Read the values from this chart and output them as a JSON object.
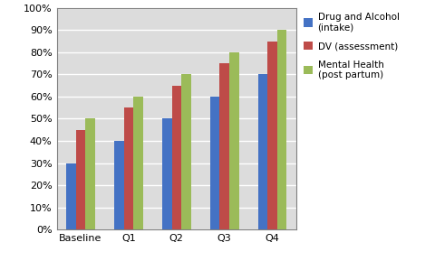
{
  "categories": [
    "Baseline",
    "Q1",
    "Q2",
    "Q3",
    "Q4"
  ],
  "series": [
    {
      "name": "Drug and Alcohol\n(intake)",
      "values": [
        0.3,
        0.4,
        0.5,
        0.6,
        0.7
      ],
      "color": "#4472C4"
    },
    {
      "name": "DV (assessment)",
      "values": [
        0.45,
        0.55,
        0.65,
        0.75,
        0.85
      ],
      "color": "#BE4B48"
    },
    {
      "name": "Mental Health\n(post partum)",
      "values": [
        0.5,
        0.6,
        0.7,
        0.8,
        0.9
      ],
      "color": "#9BBB59"
    }
  ],
  "ylim": [
    0,
    1.0
  ],
  "yticks": [
    0,
    0.1,
    0.2,
    0.3,
    0.4,
    0.5,
    0.6,
    0.7,
    0.8,
    0.9,
    1.0
  ],
  "background_color": "#FFFFFF",
  "plot_bg_color": "#DCDCDC",
  "grid_color": "#FFFFFF",
  "legend_fontsize": 7.5,
  "tick_fontsize": 8,
  "bar_width": 0.2,
  "spine_color": "#808080"
}
